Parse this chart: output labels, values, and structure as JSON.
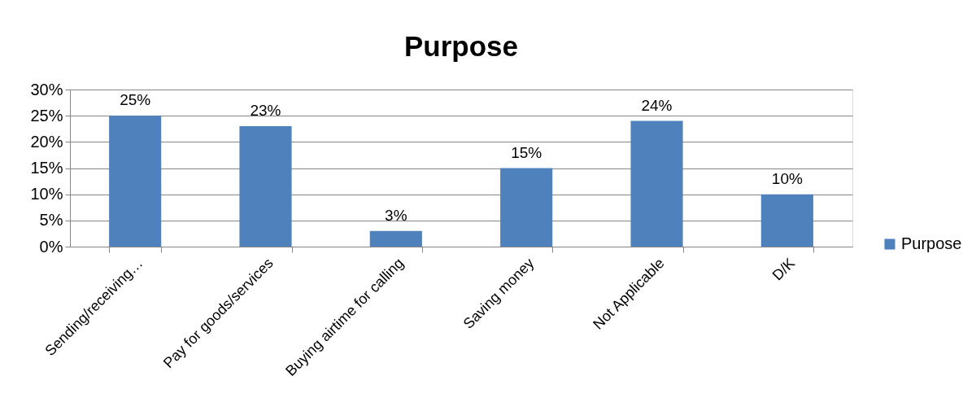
{
  "chart_data": {
    "type": "bar",
    "title": "Purpose",
    "categories": [
      "Sending/receiving…",
      "Pay for goods/services",
      "Buying airtime for calling",
      "Saving money",
      "Not Applicable",
      "D/K"
    ],
    "series": [
      {
        "name": "Purpose",
        "color": "#4f81bd",
        "values": [
          25,
          23,
          3,
          15,
          24,
          10
        ],
        "value_labels": [
          "25%",
          "23%",
          "3%",
          "15%",
          "24%",
          "10%"
        ]
      }
    ],
    "ylim": [
      0,
      30
    ],
    "yticks": [
      {
        "value": 0,
        "label": "0%"
      },
      {
        "value": 5,
        "label": "5%"
      },
      {
        "value": 10,
        "label": "10%"
      },
      {
        "value": 15,
        "label": "15%"
      },
      {
        "value": 20,
        "label": "20%"
      },
      {
        "value": 25,
        "label": "25%"
      },
      {
        "value": 30,
        "label": "30%"
      }
    ],
    "grid": "y",
    "legend": "right"
  }
}
